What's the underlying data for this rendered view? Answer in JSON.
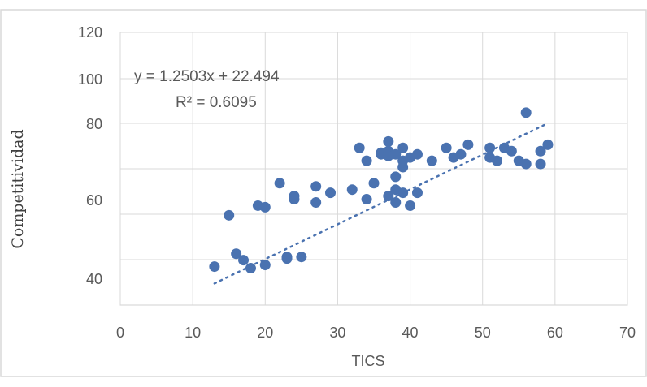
{
  "chart_data": {
    "type": "scatter",
    "xlabel": "TICS",
    "ylabel": "Competitividad",
    "xlim": [
      0,
      70
    ],
    "xticks": [
      "0",
      "10",
      "20",
      "30",
      "40",
      "50",
      "60",
      "70"
    ],
    "yticks": [
      "40",
      "60",
      "80",
      "100",
      "120"
    ],
    "grid": true,
    "marker_color": "#4a72b0",
    "trendline": {
      "type": "linear",
      "equation": "y = 1.2503x + 22.494",
      "r_squared": "R² = 0.6095",
      "slope": 1.2503,
      "intercept": 22.494,
      "x_range": [
        13,
        58.5
      ],
      "style": "dotted",
      "color": "#4a72b0"
    },
    "points": [
      [
        13,
        47
      ],
      [
        15,
        63
      ],
      [
        16,
        51
      ],
      [
        17,
        49
      ],
      [
        18,
        46.5
      ],
      [
        19,
        66
      ],
      [
        20,
        65.5
      ],
      [
        20,
        47.5
      ],
      [
        22,
        73
      ],
      [
        23,
        50
      ],
      [
        23,
        49.5
      ],
      [
        24,
        69
      ],
      [
        24,
        68
      ],
      [
        25,
        50
      ],
      [
        27,
        72
      ],
      [
        27,
        67
      ],
      [
        29,
        70
      ],
      [
        32,
        71
      ],
      [
        33,
        84
      ],
      [
        34,
        80
      ],
      [
        34,
        68
      ],
      [
        35,
        73
      ],
      [
        36,
        82.5
      ],
      [
        36,
        82
      ],
      [
        37,
        86
      ],
      [
        37,
        83
      ],
      [
        37,
        81.5
      ],
      [
        37,
        69
      ],
      [
        38,
        82
      ],
      [
        38,
        75
      ],
      [
        38,
        71
      ],
      [
        38,
        67
      ],
      [
        39,
        84
      ],
      [
        39,
        80
      ],
      [
        39,
        78
      ],
      [
        39,
        70
      ],
      [
        40,
        81
      ],
      [
        40,
        66
      ],
      [
        41,
        82
      ],
      [
        41,
        70
      ],
      [
        43,
        80
      ],
      [
        45,
        84
      ],
      [
        46,
        81
      ],
      [
        47,
        82
      ],
      [
        48,
        85
      ],
      [
        51,
        84
      ],
      [
        51,
        81
      ],
      [
        52,
        80
      ],
      [
        53,
        84
      ],
      [
        54,
        83
      ],
      [
        55,
        80
      ],
      [
        56,
        95
      ],
      [
        56,
        79
      ],
      [
        58,
        83
      ],
      [
        58,
        79
      ],
      [
        59,
        85
      ]
    ]
  }
}
